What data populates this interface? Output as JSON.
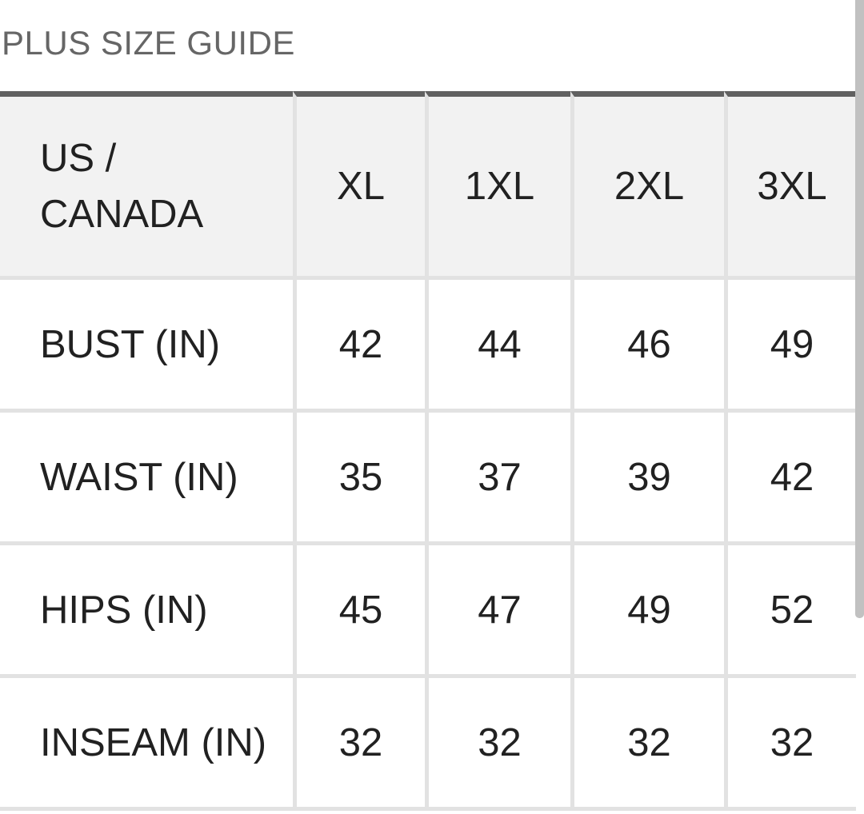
{
  "title": "PLUS SIZE GUIDE",
  "table": {
    "corner_label": "US /\nCANADA",
    "columns": [
      "XL",
      "1XL",
      "2XL",
      "3XL"
    ],
    "rows": [
      {
        "label": "BUST (IN)",
        "values": [
          "42",
          "44",
          "46",
          "49"
        ]
      },
      {
        "label": "WAIST (IN)",
        "values": [
          "35",
          "37",
          "39",
          "42"
        ]
      },
      {
        "label": "HIPS (IN)",
        "values": [
          "45",
          "47",
          "49",
          "52"
        ]
      },
      {
        "label": "INSEAM (IN)",
        "values": [
          "32",
          "32",
          "32",
          "32"
        ]
      }
    ]
  },
  "scrollbar": {
    "visible": true
  },
  "colors": {
    "title_color": "#666666",
    "text_color": "#212121",
    "table_top_border": "#616161",
    "header_bg": "#f2f2f2",
    "separator": "#e2e2e2",
    "scrollbar": "#c1c1c1",
    "page_bg": "#ffffff"
  }
}
